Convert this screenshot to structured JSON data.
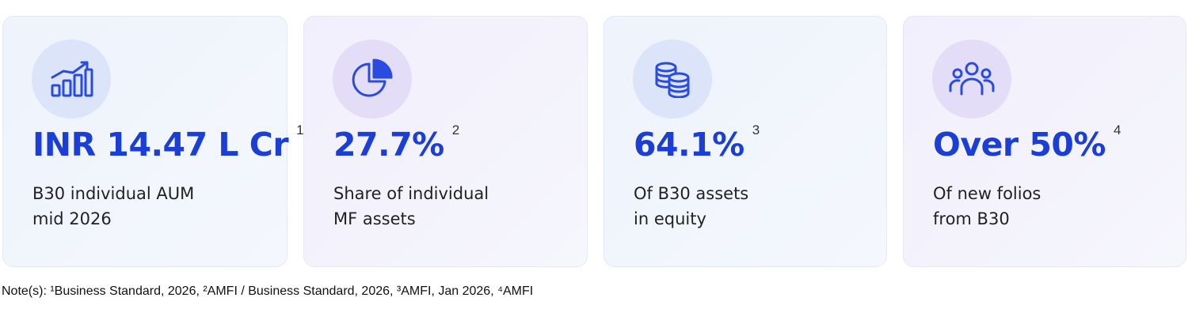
{
  "cards": [
    {
      "value": "INR 14.47 L Cr",
      "ref": "1",
      "line1": "B30 individual AUM",
      "line2": "mid 2026",
      "icon": "bar-chart-growth-icon"
    },
    {
      "value": "27.7%",
      "ref": "2",
      "line1": "Share of individual",
      "line2": "MF assets",
      "icon": "pie-chart-icon"
    },
    {
      "value": "64.1%",
      "ref": "3",
      "line1": "Of B30 assets",
      "line2": "in equity",
      "icon": "coin-stack-icon"
    },
    {
      "value": "Over 50%",
      "ref": "4",
      "line1": "Of new folios",
      "line2": "from B30",
      "icon": "users-group-icon"
    }
  ],
  "note": "Note(s): ¹Business Standard, 2026, ²AMFI / Business Standard, 2026, ³AMFI, Jan 2026,  ⁴AMFI",
  "colors": {
    "accent": "#1b3fd6",
    "icon_stroke": "#2a4be0",
    "blue_card": "#eef3fc",
    "purple_card": "#f1effc"
  }
}
